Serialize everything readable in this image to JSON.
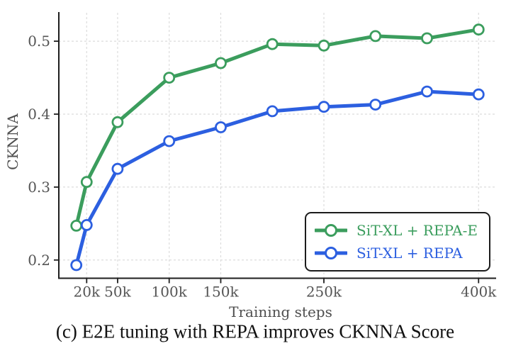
{
  "figure": {
    "caption": "(c) E2E tuning with REPA improves CKNNA Score"
  },
  "chart_data": {
    "type": "line",
    "title": "",
    "xlabel": "Training steps",
    "ylabel": "CKNNA",
    "x": [
      10,
      20,
      50,
      100,
      150,
      200,
      250,
      300,
      350,
      400
    ],
    "x_unit": "k",
    "x_tick_values": [
      20,
      50,
      100,
      150,
      250,
      400
    ],
    "x_tick_labels": [
      "20k",
      "50k",
      "100k",
      "150k",
      "250k",
      "400k"
    ],
    "y_tick_values": [
      0.2,
      0.3,
      0.4,
      0.5
    ],
    "y_tick_labels": [
      "0.2",
      "0.3",
      "0.4",
      "0.5"
    ],
    "xlim": [
      -7,
      417
    ],
    "ylim": [
      0.175,
      0.539
    ],
    "grid": true,
    "grid_style": "dashed",
    "legend_position": "lower right",
    "marker": "open-circle",
    "series": [
      {
        "name": "SiT-XL + REPA-E",
        "color": "#3b9d5d",
        "values": [
          0.247,
          0.307,
          0.389,
          0.45,
          0.47,
          0.496,
          0.494,
          0.507,
          0.504,
          0.516
        ]
      },
      {
        "name": "SiT-XL + REPA",
        "color": "#2c5fe0",
        "values": [
          0.193,
          0.248,
          0.325,
          0.363,
          0.382,
          0.404,
          0.41,
          0.413,
          0.431,
          0.427
        ]
      }
    ]
  },
  "colors": {
    "background": "#ffffff",
    "grid": "#dcdcdc",
    "spine": "#1e1e1e",
    "tick_label": "#555555",
    "axis_label": "#4f4f4f",
    "legend_border": "#1c1c1c",
    "caption_text": "#111111"
  }
}
